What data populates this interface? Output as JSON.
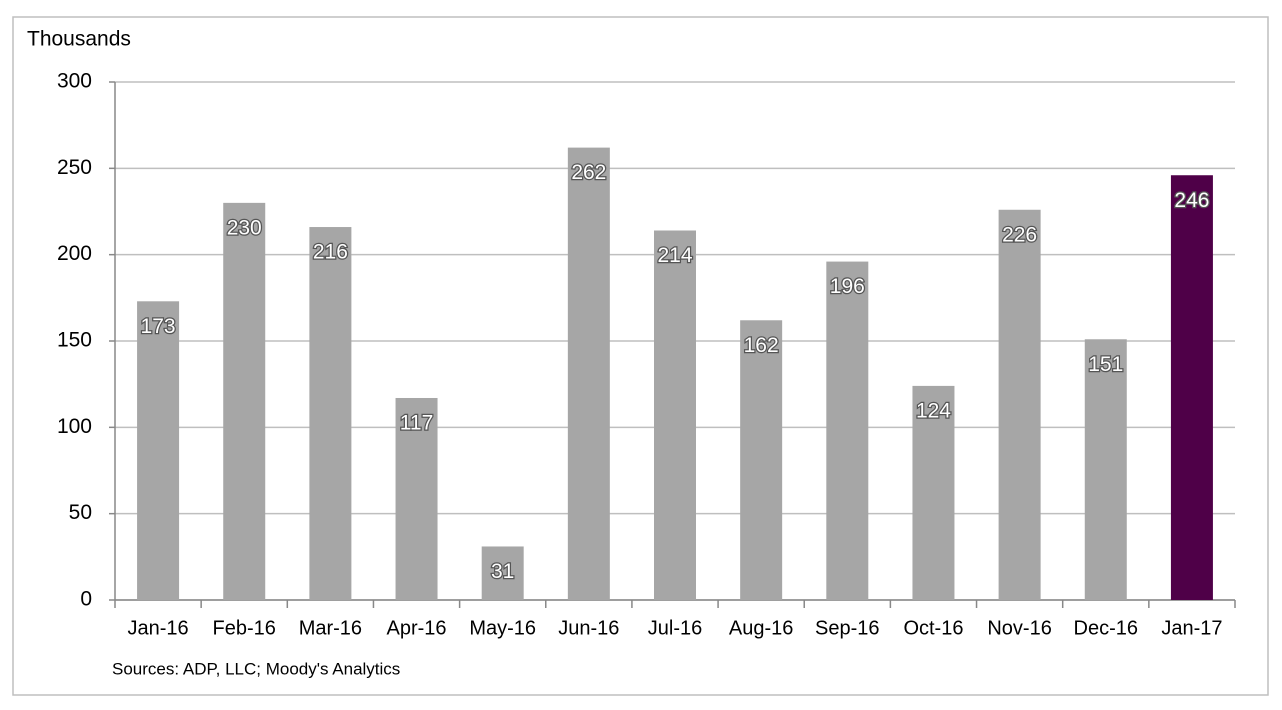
{
  "chart_data": {
    "type": "bar",
    "y_axis_label": "Thousands",
    "source": "Sources: ADP, LLC; Moody's Analytics",
    "categories": [
      "Jan-16",
      "Feb-16",
      "Mar-16",
      "Apr-16",
      "May-16",
      "Jun-16",
      "Jul-16",
      "Aug-16",
      "Sep-16",
      "Oct-16",
      "Nov-16",
      "Dec-16",
      "Jan-17"
    ],
    "values": [
      173,
      230,
      216,
      117,
      31,
      262,
      214,
      162,
      196,
      124,
      226,
      151,
      246
    ],
    "colors": [
      "#a6a6a6",
      "#a6a6a6",
      "#a6a6a6",
      "#a6a6a6",
      "#a6a6a6",
      "#a6a6a6",
      "#a6a6a6",
      "#a6a6a6",
      "#a6a6a6",
      "#a6a6a6",
      "#a6a6a6",
      "#a6a6a6",
      "#4f0048"
    ],
    "ylim": [
      0,
      300
    ],
    "yticks": [
      0,
      50,
      100,
      150,
      200,
      250,
      300
    ],
    "grid": true,
    "data_labels": true
  }
}
